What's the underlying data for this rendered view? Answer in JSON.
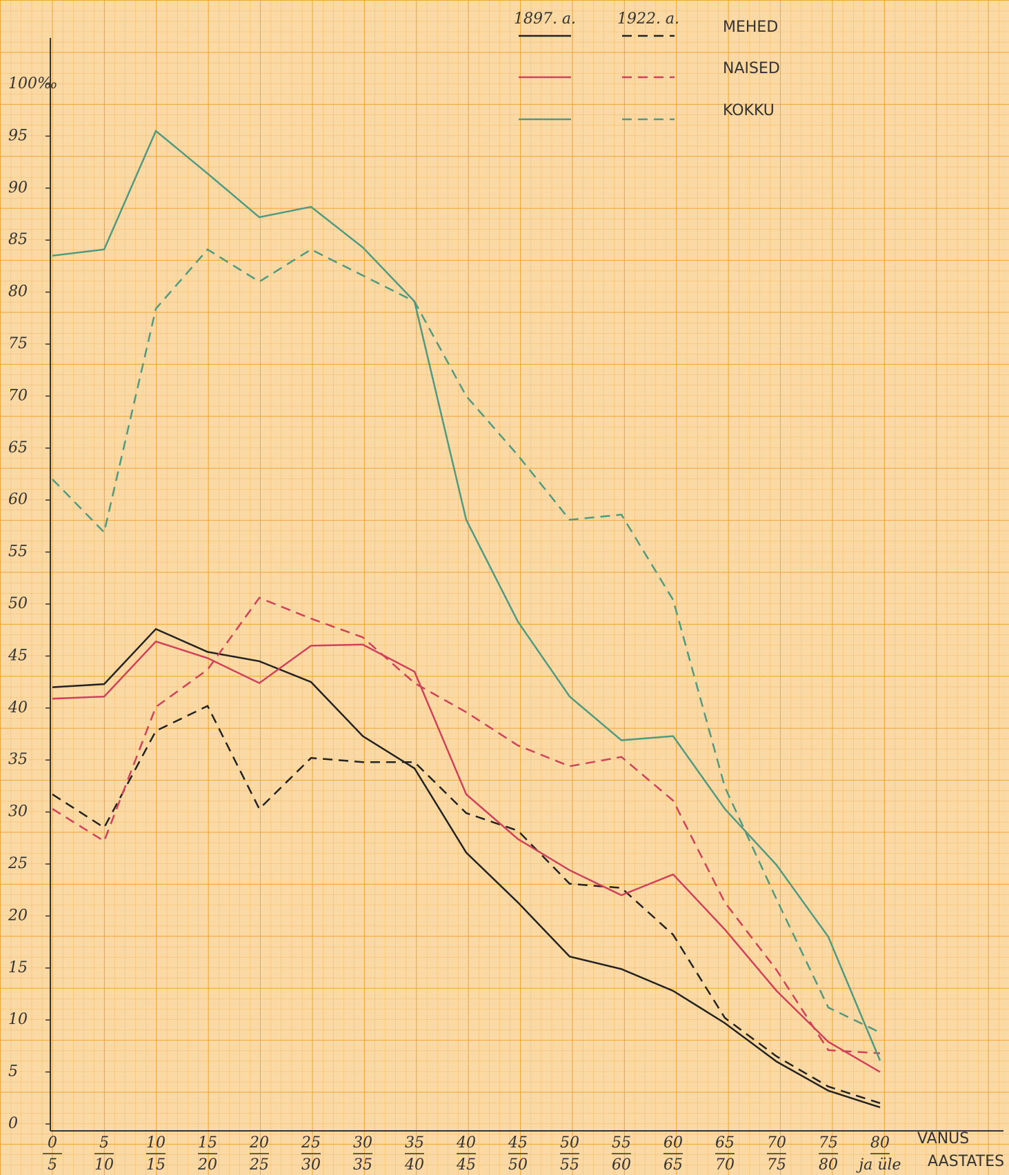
{
  "chart_data": {
    "type": "line",
    "legend": {
      "years": [
        "1897. a.",
        "1922. a."
      ],
      "groups": [
        "MEHED",
        "NAISED",
        "KOKKU"
      ]
    },
    "x_label": [
      "VANUS",
      "AASTATES"
    ],
    "categories": [
      [
        "0",
        "5"
      ],
      [
        "5",
        "10"
      ],
      [
        "10",
        "15"
      ],
      [
        "15",
        "20"
      ],
      [
        "20",
        "25"
      ],
      [
        "25",
        "30"
      ],
      [
        "30",
        "35"
      ],
      [
        "35",
        "40"
      ],
      [
        "40",
        "45"
      ],
      [
        "45",
        "50"
      ],
      [
        "50",
        "55"
      ],
      [
        "55",
        "60"
      ],
      [
        "60",
        "65"
      ],
      [
        "65",
        "70"
      ],
      [
        "70",
        "75"
      ],
      [
        "75",
        "80"
      ],
      [
        "80",
        "ja üle"
      ]
    ],
    "ylim": [
      0,
      100
    ],
    "yticks": [
      0,
      5,
      10,
      15,
      20,
      25,
      30,
      35,
      40,
      45,
      50,
      55,
      60,
      65,
      70,
      75,
      80,
      85,
      90,
      95,
      {
        "value": 100,
        "label": "100‰"
      }
    ],
    "series": [
      {
        "color": "#222222",
        "dashed": false,
        "values": [
          42.0,
          42.3,
          47.6,
          45.4,
          44.5,
          42.5,
          37.3,
          34.2,
          26.1,
          21.3,
          16.1,
          14.9,
          12.8,
          9.7,
          6.0,
          3.2,
          1.6
        ]
      },
      {
        "color": "#222222",
        "dashed": true,
        "values": [
          31.7,
          28.5,
          37.8,
          40.2,
          30.3,
          35.2,
          34.8,
          34.8,
          29.9,
          28.2,
          23.1,
          22.7,
          18.2,
          10.2,
          6.5,
          3.6,
          2.0
        ]
      },
      {
        "color": "#d0405a",
        "dashed": false,
        "values": [
          40.9,
          41.1,
          46.4,
          44.8,
          42.4,
          46.0,
          46.1,
          43.5,
          31.7,
          27.4,
          24.4,
          22.0,
          24.0,
          18.7,
          12.8,
          7.9,
          5.0
        ]
      },
      {
        "color": "#d0405a",
        "dashed": true,
        "values": [
          30.3,
          27.2,
          40.1,
          43.7,
          50.6,
          48.6,
          46.8,
          42.4,
          39.6,
          36.4,
          34.4,
          35.3,
          31.1,
          21.3,
          14.8,
          7.1,
          6.8
        ]
      },
      {
        "color": "#4e9a80",
        "dashed": false,
        "values": [
          83.5,
          84.1,
          95.5,
          91.4,
          87.2,
          88.2,
          84.3,
          79.1,
          58.1,
          48.3,
          41.1,
          36.9,
          37.3,
          30.3,
          24.9,
          18.0,
          6.1
        ]
      },
      {
        "color": "#4e9a80",
        "dashed": true,
        "values": [
          62.0,
          56.9,
          78.4,
          84.1,
          81.0,
          84.1,
          81.6,
          79.1,
          70.0,
          64.3,
          58.1,
          58.6,
          50.4,
          32.4,
          21.6,
          11.2,
          8.8
        ]
      }
    ]
  }
}
